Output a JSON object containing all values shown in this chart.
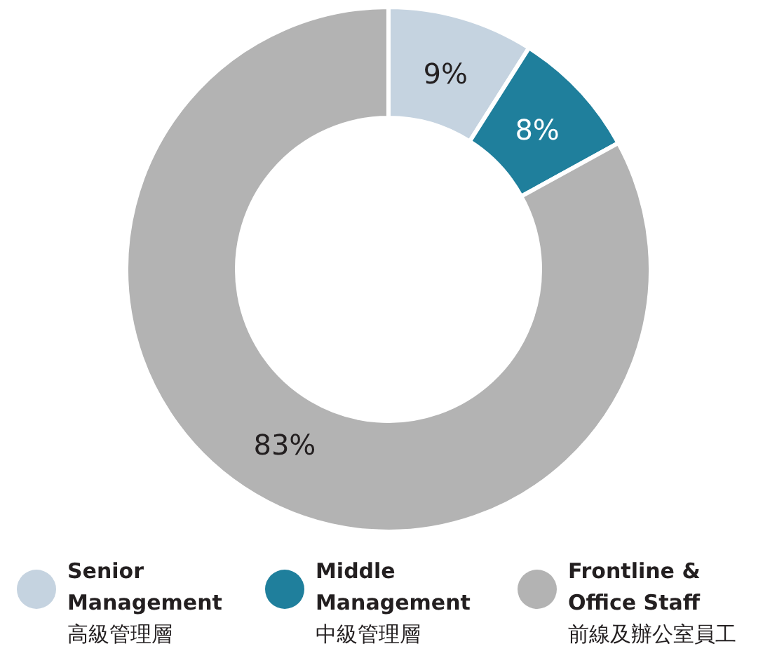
{
  "chart_data": {
    "type": "donut",
    "categories": [
      "Senior\nManagement\n高級管理層",
      "Middle\nManagement\n中級管理層",
      "Frontline &\nOffice Staff\n前線及辦公室員工"
    ],
    "values": [
      9,
      8,
      83
    ],
    "colors": [
      "#c5d3e0",
      "#1f7f9c",
      "#b3b3b3"
    ],
    "value_labels": [
      "9%",
      "8%",
      "83%"
    ],
    "legend": "bottom"
  }
}
